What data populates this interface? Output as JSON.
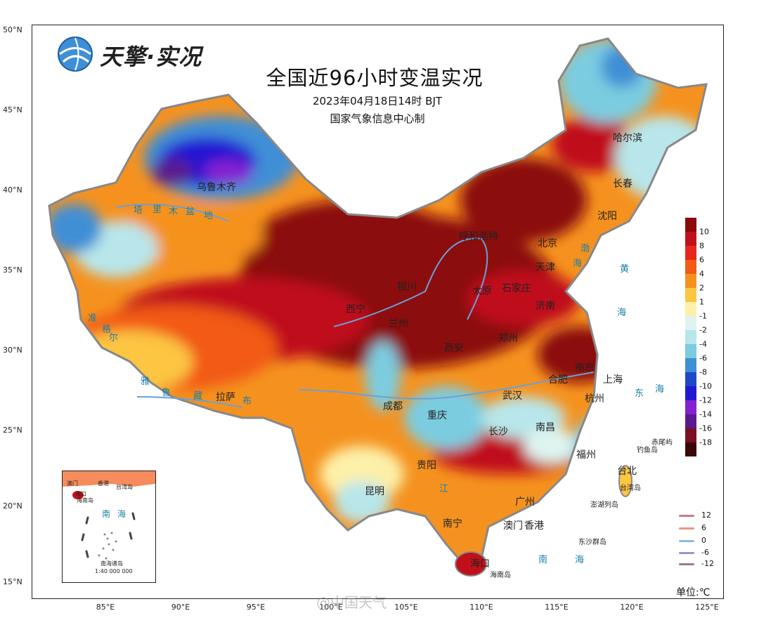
{
  "title": "全国近96小时变温实况",
  "datetime": "2023年04月18日14时  BJT",
  "producer": "国家气象信息中心制",
  "logo_text": "天擎·实况",
  "unit_label": "单位:℃",
  "watermark": "@中国天气",
  "lat_labels": [
    "50°N",
    "45°N",
    "40°N",
    "35°N",
    "30°N",
    "25°N",
    "20°N",
    "15°N"
  ],
  "lon_labels": [
    "85°E",
    "90°E",
    "95°E",
    "100°E",
    "105°E",
    "110°E",
    "115°E",
    "120°E",
    "125°E"
  ],
  "legend": {
    "labels": [
      "10",
      "8",
      "6",
      "4",
      "2",
      "1",
      "-1",
      "-2",
      "-4",
      "-6",
      "-8",
      "-10",
      "-12",
      "-14",
      "-16",
      "-18"
    ],
    "colors": [
      "#8b0a0a",
      "#c0111a",
      "#e8261d",
      "#f25a16",
      "#f5921f",
      "#fcc542",
      "#fdf0a8",
      "#dff4f0",
      "#b8e6ea",
      "#7ccce0",
      "#3f8fd6",
      "#1f48c8",
      "#2218d2",
      "#8420d0",
      "#5a1a8e",
      "#7a1022",
      "#3a0808"
    ]
  },
  "isolines": {
    "labels": [
      "12",
      "6",
      "0",
      "-6",
      "-12"
    ],
    "colors": [
      "#c87a8a",
      "#e59a80",
      "#8fb8e0",
      "#a490d0",
      "#9a7a90"
    ]
  },
  "cities": [
    "哈尔滨",
    "长春",
    "沈阳",
    "北京",
    "天津",
    "石家庄",
    "济南",
    "太原",
    "呼和浩特",
    "银川",
    "西宁",
    "兰州",
    "西安",
    "郑州",
    "南京",
    "上海",
    "合肥",
    "杭州",
    "武汉",
    "南昌",
    "长沙",
    "福州",
    "台北",
    "重庆",
    "成都",
    "贵阳",
    "昆明",
    "南宁",
    "广州",
    "澳门",
    "香港",
    "海口",
    "拉萨",
    "乌鲁木齐"
  ],
  "geo_labels": [
    "渤",
    "海",
    "黄",
    "海",
    "东",
    "海",
    "南",
    "海",
    "塔",
    "里",
    "木",
    "盆",
    "地",
    "准",
    "格",
    "尔",
    "雅",
    "鲁",
    "藏",
    "布",
    "江"
  ],
  "islands": [
    "赤尾屿",
    "钓鱼岛",
    "台湾岛",
    "澎湖列岛",
    "东沙群岛",
    "海南岛"
  ],
  "inset": {
    "labels": [
      "澳门",
      "香港",
      "台湾岛",
      "海口",
      "海南岛",
      "南",
      "海",
      "南海诸岛",
      "1:40 000 000"
    ]
  }
}
